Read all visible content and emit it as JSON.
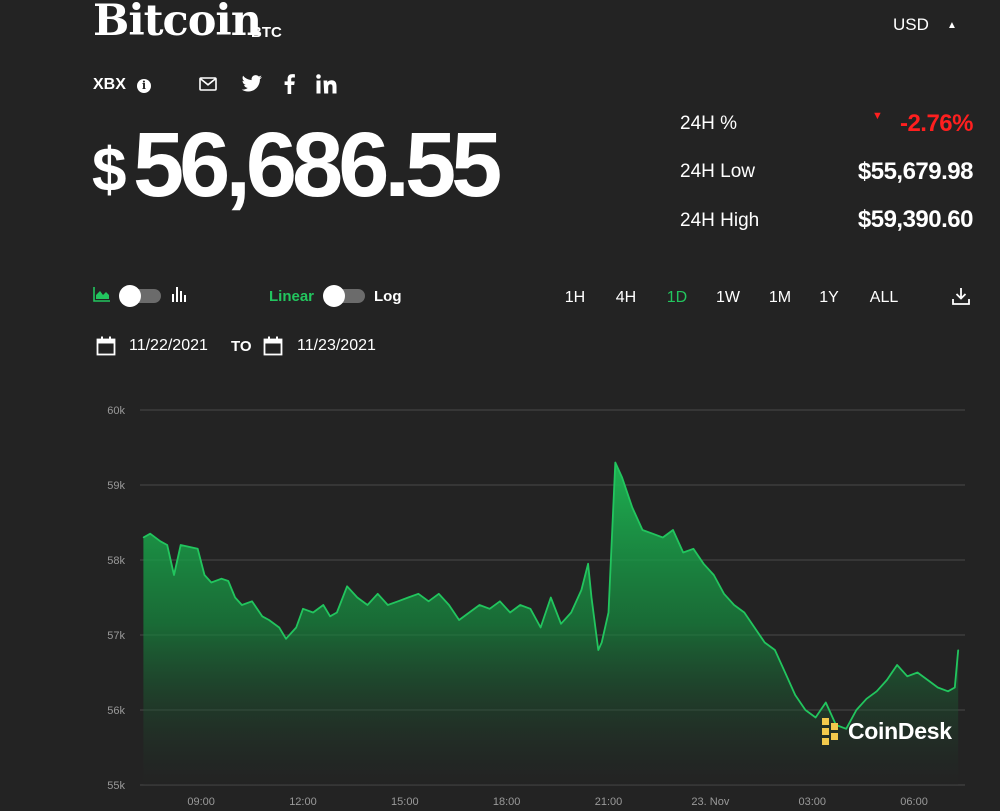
{
  "header": {
    "coin_name": "Bitcoin",
    "coin_ticker": "BTC",
    "currency": "USD",
    "index_ticker": "XBX",
    "info_glyph": "i",
    "share_icons": [
      "mail-icon",
      "twitter-icon",
      "facebook-icon",
      "linkedin-icon"
    ]
  },
  "price": {
    "symbol": "$",
    "value": "56,686.55"
  },
  "stats": [
    {
      "label": "24H %",
      "value": "-2.76%",
      "color": "#ff1f1f"
    },
    {
      "label": "24H Low",
      "value": "$55,679.98"
    },
    {
      "label": "24H High",
      "value": "$59,390.60"
    }
  ],
  "controls": {
    "chart_type_icons": [
      "area-chart-icon",
      "bar-chart-icon"
    ],
    "scale_options": [
      "Linear",
      "Log"
    ],
    "active_scale": "Linear",
    "timeframes": [
      "1H",
      "4H",
      "1D",
      "1W",
      "1M",
      "1Y",
      "ALL"
    ],
    "active_timeframe": "1D",
    "download_icon": "download-icon",
    "accent_color": "#22c55e"
  },
  "date_range": {
    "from": "11/22/2021",
    "to_label": "TO",
    "to": "11/23/2021"
  },
  "watermark": "CoinDesk",
  "chart_data": {
    "type": "area",
    "title": "",
    "xlabel": "",
    "ylabel": "",
    "x_tick_labels": [
      "09:00",
      "12:00",
      "15:00",
      "18:00",
      "21:00",
      "23. Nov",
      "03:00",
      "06:00"
    ],
    "y_tick_labels": [
      "55k",
      "56k",
      "57k",
      "58k",
      "59k",
      "60k"
    ],
    "ylim": [
      55000,
      60000
    ],
    "y_ticks": [
      55000,
      56000,
      57000,
      58000,
      59000,
      60000
    ],
    "x_tick_hours": [
      9,
      12,
      15,
      18,
      21,
      24,
      27,
      30
    ],
    "xlim_hours": [
      7.2,
      31.5
    ],
    "grid": true,
    "line_color": "#22c55e",
    "series": [
      {
        "x_hours": [
          7.3,
          7.5,
          7.8,
          8.0,
          8.2,
          8.4,
          8.6,
          8.9,
          9.1,
          9.3,
          9.6,
          9.8,
          10.0,
          10.2,
          10.5,
          10.8,
          11.0,
          11.3,
          11.5,
          11.8,
          12.0,
          12.3,
          12.6,
          12.8,
          13.0,
          13.3,
          13.6,
          13.9,
          14.2,
          14.5,
          14.8,
          15.1,
          15.4,
          15.7,
          16.0,
          16.3,
          16.6,
          16.9,
          17.2,
          17.5,
          17.8,
          18.1,
          18.4,
          18.7,
          19.0,
          19.3,
          19.6,
          19.9,
          20.2,
          20.4,
          20.5,
          20.6,
          20.7,
          20.8,
          21.0,
          21.2,
          21.4,
          21.7,
          22.0,
          22.3,
          22.6,
          22.9,
          23.2,
          23.5,
          23.8,
          24.1,
          24.4,
          24.7,
          25.0,
          25.3,
          25.6,
          25.9,
          26.2,
          26.5,
          26.8,
          27.1,
          27.4,
          27.7,
          28.0,
          28.3,
          28.6,
          28.9,
          29.2,
          29.5,
          29.8,
          30.1,
          30.4,
          30.7,
          31.0,
          31.2,
          31.3
        ],
        "values": [
          58300,
          58350,
          58250,
          58200,
          57800,
          58200,
          58180,
          58150,
          57800,
          57700,
          57750,
          57720,
          57500,
          57400,
          57450,
          57250,
          57200,
          57100,
          56950,
          57100,
          57350,
          57300,
          57400,
          57250,
          57300,
          57650,
          57500,
          57400,
          57550,
          57400,
          57450,
          57500,
          57550,
          57450,
          57550,
          57400,
          57200,
          57300,
          57400,
          57350,
          57450,
          57300,
          57400,
          57350,
          57100,
          57500,
          57150,
          57300,
          57600,
          57950,
          57500,
          57150,
          56800,
          56900,
          57300,
          59300,
          59100,
          58700,
          58400,
          58350,
          58300,
          58400,
          58100,
          58150,
          57950,
          57800,
          57550,
          57400,
          57300,
          57100,
          56900,
          56800,
          56500,
          56200,
          56000,
          55900,
          56100,
          55800,
          55750,
          56000,
          56150,
          56250,
          56400,
          56600,
          56450,
          56500,
          56400,
          56300,
          56250,
          56300,
          56800
        ]
      }
    ]
  }
}
